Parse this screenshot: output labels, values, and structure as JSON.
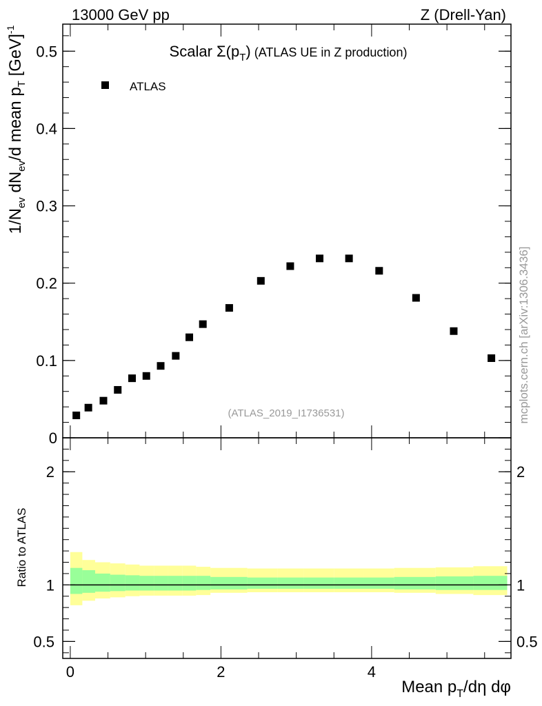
{
  "header": {
    "left": "13000 GeV pp",
    "right": "Z (Drell-Yan)"
  },
  "main": {
    "title_prefix": "Scalar ",
    "title_sigma": "Σ(p",
    "title_sub": "T",
    "title_close": ")",
    "title_suffix": " (ATLAS UE in Z production)",
    "legend_label": "ATLAS",
    "analysis_id": "(ATLAS_2019_I1736531)",
    "watermark": "mcplots.cern.ch [arXiv:1306.3436]",
    "ylabel": {
      "p1": "1/N",
      "s1": "ev",
      "p2": " dN",
      "s2": "ev",
      "p3": "/d mean p",
      "s3": "T",
      "p4": " [GeV]",
      "sup": "-1"
    }
  },
  "ratio": {
    "ylabel": "Ratio to ATLAS"
  },
  "xlabel": {
    "p1": "Mean p",
    "sub": "T",
    "p2": "/dη dφ"
  },
  "colors": {
    "marker": "#000000",
    "band_outer": "#ffff99",
    "band_inner": "#99ff99"
  },
  "chart_data": [
    {
      "type": "scatter",
      "title": "Scalar Σ(pT) (ATLAS UE in Z production)",
      "xlabel": "Mean pT/dη dφ",
      "ylabel": "1/Nev dNev/d mean pT [GeV]-1",
      "xlim": [
        -0.1,
        5.85
      ],
      "ylim": [
        0,
        0.535
      ],
      "x_ticks": [
        0,
        2,
        4
      ],
      "x_tick_labels": [
        "0",
        "2",
        "4"
      ],
      "y_ticks": [
        0,
        0.1,
        0.2,
        0.3,
        0.4,
        0.5
      ],
      "y_tick_labels": [
        "0",
        "0.1",
        "0.2",
        "0.3",
        "0.4",
        "0.5"
      ],
      "series": [
        {
          "name": "ATLAS",
          "x": [
            0.08,
            0.24,
            0.44,
            0.63,
            0.82,
            1.01,
            1.2,
            1.4,
            1.58,
            1.76,
            2.11,
            2.53,
            2.92,
            3.31,
            3.7,
            4.1,
            4.59,
            5.09,
            5.59
          ],
          "y": [
            0.029,
            0.039,
            0.048,
            0.062,
            0.077,
            0.08,
            0.093,
            0.106,
            0.13,
            0.147,
            0.168,
            0.203,
            0.222,
            0.232,
            0.232,
            0.216,
            0.181,
            0.138,
            0.103
          ]
        }
      ]
    },
    {
      "type": "area",
      "title": "Ratio to ATLAS",
      "ylabel": "Ratio to ATLAS",
      "xlim": [
        -0.1,
        5.85
      ],
      "ylim": [
        0.35,
        2.3
      ],
      "y_ticks": [
        0.5,
        1,
        2
      ],
      "y_tick_labels": [
        "0.5",
        "1",
        "2"
      ],
      "bins": [
        0,
        0.16,
        0.33,
        0.53,
        0.73,
        0.92,
        1.11,
        1.3,
        1.49,
        1.67,
        1.86,
        2.35,
        2.75,
        3.1,
        3.5,
        3.9,
        4.3,
        4.85,
        5.35,
        5.8
      ],
      "series": [
        {
          "name": "outer band",
          "low": [
            0.82,
            0.86,
            0.88,
            0.89,
            0.9,
            0.905,
            0.905,
            0.905,
            0.905,
            0.91,
            0.93,
            0.935,
            0.935,
            0.935,
            0.935,
            0.935,
            0.93,
            0.92,
            0.91
          ],
          "high": [
            1.29,
            1.22,
            1.2,
            1.19,
            1.18,
            1.17,
            1.17,
            1.17,
            1.17,
            1.16,
            1.15,
            1.145,
            1.145,
            1.145,
            1.145,
            1.145,
            1.15,
            1.155,
            1.165
          ]
        },
        {
          "name": "inner band",
          "low": [
            0.92,
            0.93,
            0.94,
            0.945,
            0.95,
            0.95,
            0.95,
            0.95,
            0.95,
            0.955,
            0.96,
            0.965,
            0.965,
            0.965,
            0.965,
            0.965,
            0.96,
            0.955,
            0.955
          ],
          "high": [
            1.15,
            1.13,
            1.1,
            1.09,
            1.085,
            1.08,
            1.08,
            1.08,
            1.08,
            1.08,
            1.07,
            1.065,
            1.065,
            1.065,
            1.065,
            1.065,
            1.07,
            1.075,
            1.08
          ]
        },
        {
          "name": "reference",
          "value": 1
        }
      ]
    }
  ]
}
